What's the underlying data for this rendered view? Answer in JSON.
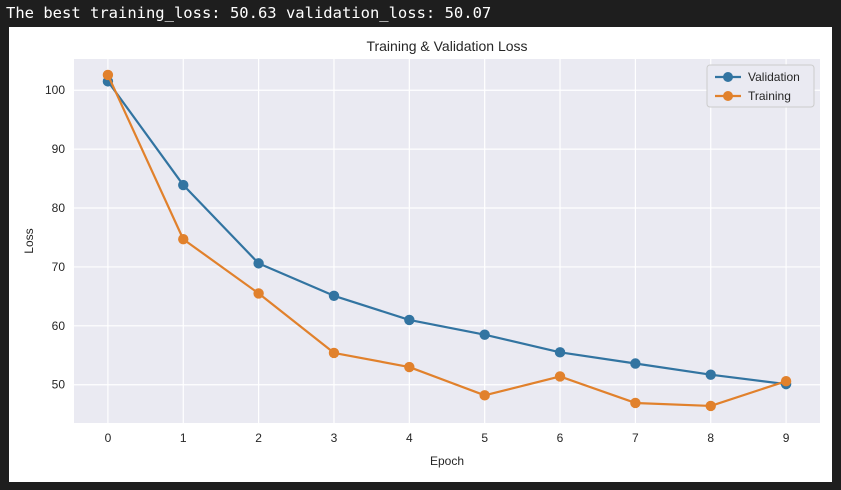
{
  "output": {
    "text": "The best training_loss: 50.63 validation_loss: 50.07"
  },
  "chart_data": {
    "type": "line",
    "title": "Training & Validation Loss",
    "xlabel": "Epoch",
    "ylabel": "Loss",
    "x": [
      0,
      1,
      2,
      3,
      4,
      5,
      6,
      7,
      8,
      9
    ],
    "xticks": [
      "0",
      "1",
      "2",
      "3",
      "4",
      "5",
      "6",
      "7",
      "8",
      "9"
    ],
    "yticks": [
      50,
      60,
      70,
      80,
      90,
      100
    ],
    "xlim": [
      -0.45,
      9.45
    ],
    "ylim": [
      43.5,
      105.3
    ],
    "grid": true,
    "legend_position": "top-right",
    "series": [
      {
        "name": "Validation",
        "color": "#3274a1",
        "values": [
          101.5,
          83.9,
          70.6,
          65.1,
          61.0,
          58.5,
          55.5,
          53.6,
          51.7,
          50.1
        ]
      },
      {
        "name": "Training",
        "color": "#e1812c",
        "values": [
          102.6,
          74.7,
          65.5,
          55.4,
          53.0,
          48.2,
          51.4,
          46.9,
          46.4,
          50.6
        ]
      }
    ]
  }
}
